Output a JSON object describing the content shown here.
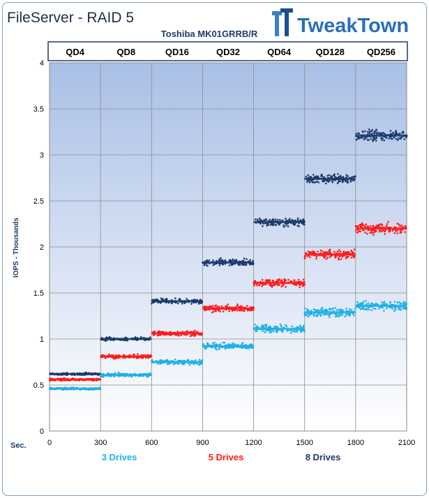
{
  "title": "FileServer - RAID 5",
  "logo": {
    "text": "TweakTown",
    "icon": "tweaktown-tt-logo-icon"
  },
  "chart_data": {
    "type": "scatter",
    "subtitle": "Toshiba MK01GRRB/R",
    "segments": [
      "QD4",
      "QD8",
      "QD16",
      "QD32",
      "QD64",
      "QD128",
      "QD256"
    ],
    "xlabel": "Sec.",
    "ylabel": "IOPS - Thousands",
    "xlim": [
      0,
      2100
    ],
    "ylim": [
      0,
      4
    ],
    "xticks": [
      "0",
      "300",
      "600",
      "900",
      "1200",
      "1500",
      "1800",
      "2100"
    ],
    "yticks": [
      "0",
      "0.5",
      "1",
      "1.5",
      "2",
      "2.5",
      "3",
      "3.5",
      "4"
    ],
    "grid": true,
    "legend_position": "bottom",
    "series": [
      {
        "name": "3 Drives",
        "color": "#1fb0e6",
        "levels": [
          0.46,
          0.61,
          0.75,
          0.92,
          1.11,
          1.29,
          1.36
        ]
      },
      {
        "name": "5 Drives",
        "color": "#ff1a1a",
        "levels": [
          0.56,
          0.81,
          1.06,
          1.33,
          1.61,
          1.92,
          2.2
        ]
      },
      {
        "name": "8 Drives",
        "color": "#1c3a6b",
        "levels": [
          0.62,
          1.0,
          1.41,
          1.83,
          2.27,
          2.74,
          3.21
        ]
      }
    ]
  }
}
